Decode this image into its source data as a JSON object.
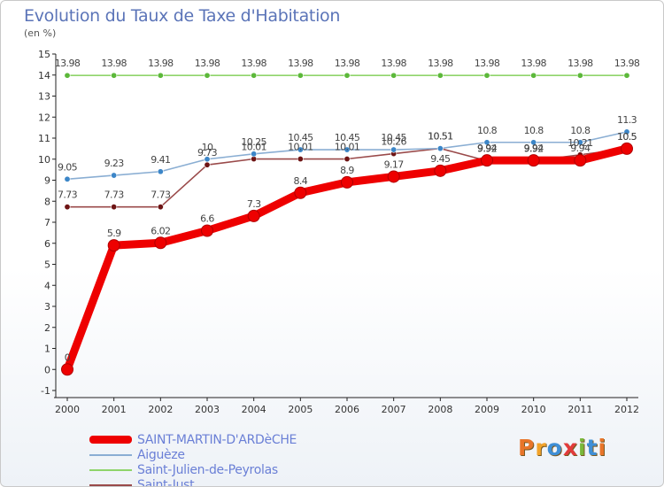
{
  "title": "Evolution du Taux de Taxe d'Habitation",
  "subtitle": "(en %)",
  "logo": {
    "text": "Proxiti",
    "letter_colors": [
      "#e8752a",
      "#f2a32a",
      "#3f8fd6",
      "#e23b3b",
      "#79b83a",
      "#3f8fd6",
      "#e8752a"
    ]
  },
  "chart_data": {
    "type": "line",
    "x": [
      2000,
      2001,
      2002,
      2003,
      2004,
      2005,
      2006,
      2007,
      2008,
      2009,
      2010,
      2011,
      2012
    ],
    "ylim": [
      -1,
      15
    ],
    "yticks": [
      -1,
      0,
      1,
      2,
      3,
      4,
      5,
      6,
      7,
      8,
      9,
      10,
      11,
      12,
      13,
      14,
      15
    ],
    "grid": false,
    "legend_position": "bottom",
    "series": [
      {
        "name": "SAINT-MARTIN-D'ARDèCHE",
        "color": "#ee0000",
        "width": "thick",
        "values": [
          0,
          5.9,
          6.02,
          6.6,
          7.3,
          8.4,
          8.9,
          9.17,
          9.45,
          9.94,
          9.94,
          9.94,
          10.5
        ],
        "labels": [
          "0",
          "5.9",
          "6.02",
          "6.6",
          "7.3",
          "8.4",
          "8.9",
          "9.17",
          "9.45",
          "9.94",
          "9.94",
          "9.94",
          "10.5"
        ]
      },
      {
        "name": "Aiguèze",
        "color": "#8aaed3",
        "marker_color": "#3c86c8",
        "width": "thin",
        "values": [
          9.05,
          9.23,
          9.41,
          10,
          10.25,
          10.45,
          10.45,
          10.45,
          10.51,
          10.8,
          10.8,
          10.8,
          11.3
        ],
        "labels": [
          "9.05",
          "9.23",
          "9.41",
          "10",
          "10.25",
          "10.45",
          "10.45",
          "10.45",
          "10.51",
          "10.8",
          "10.8",
          "10.8",
          "11.3"
        ]
      },
      {
        "name": "Saint-Julien-de-Peyrolas",
        "color": "#8fd46a",
        "marker_color": "#5cb83a",
        "width": "thin",
        "values": [
          13.98,
          13.98,
          13.98,
          13.98,
          13.98,
          13.98,
          13.98,
          13.98,
          13.98,
          13.98,
          13.98,
          13.98,
          13.98
        ],
        "labels": [
          "13.98",
          "13.98",
          "13.98",
          "13.98",
          "13.98",
          "13.98",
          "13.98",
          "13.98",
          "13.98",
          "13.98",
          "13.98",
          "13.98",
          "13.98"
        ]
      },
      {
        "name": "Saint-Just",
        "color": "#9a4a4a",
        "marker_color": "#6e1414",
        "width": "thin",
        "values": [
          7.73,
          7.73,
          7.73,
          9.73,
          10.01,
          10.01,
          10.01,
          10.26,
          10.51,
          9.92,
          9.92,
          10.21,
          10.5
        ],
        "labels": [
          "7.73",
          "7.73",
          "7.73",
          "9.73",
          "10.01",
          "10.01",
          "10.01",
          "10.26",
          "10.51",
          "9.92",
          "9.92",
          "10.21",
          "10.5"
        ]
      }
    ]
  }
}
